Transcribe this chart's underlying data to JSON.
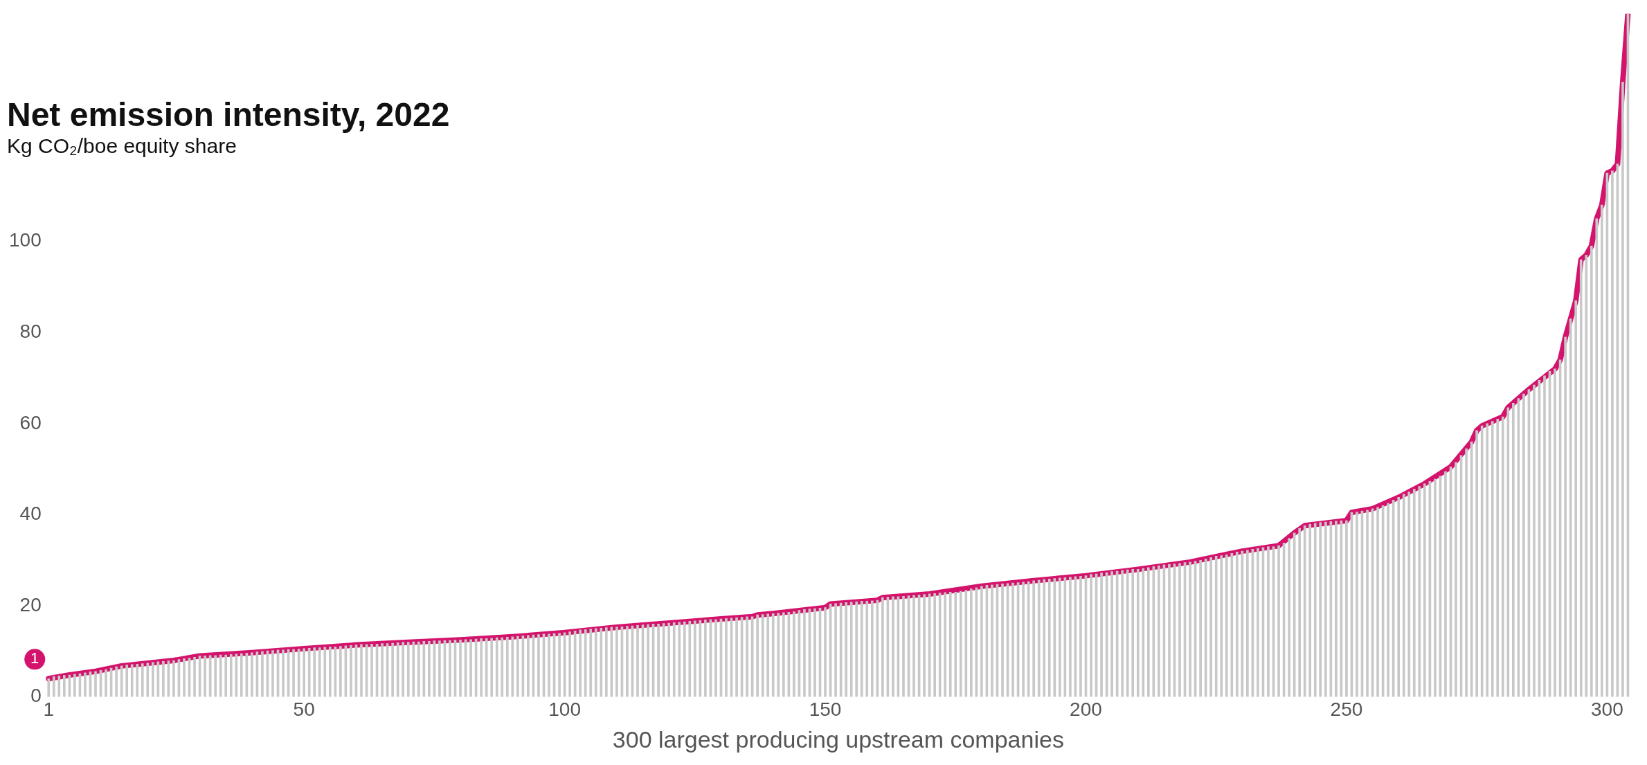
{
  "chart_data": {
    "type": "bar",
    "title": "Net emission intensity, 2022",
    "subtitle": "Kg CO₂/boe equity share",
    "xlabel": "300 largest producing upstream companies",
    "xlim": [
      0,
      305
    ],
    "xticks": [
      1,
      50,
      100,
      150,
      200,
      250,
      300
    ],
    "ylim": [
      0,
      150
    ],
    "yticks": [
      0,
      20,
      40,
      60,
      80,
      100
    ],
    "annotations": [
      {
        "text": "1",
        "x": 1,
        "y": 4
      }
    ],
    "series": [
      {
        "color": "#c8c8c8",
        "x": [
          1,
          2,
          3,
          4,
          5,
          6,
          7,
          8,
          9,
          10,
          11,
          12,
          13,
          14,
          15,
          16,
          17,
          18,
          19,
          20,
          21,
          22,
          23,
          24,
          25,
          26,
          27,
          28,
          29,
          30,
          31,
          32,
          33,
          34,
          35,
          36,
          37,
          38,
          39,
          40,
          41,
          42,
          43,
          44,
          45,
          46,
          47,
          48,
          49,
          50,
          51,
          52,
          53,
          54,
          55,
          56,
          57,
          58,
          59,
          60,
          61,
          62,
          63,
          64,
          65,
          66,
          67,
          68,
          69,
          70,
          71,
          72,
          73,
          74,
          75,
          76,
          77,
          78,
          79,
          80,
          81,
          82,
          83,
          84,
          85,
          86,
          87,
          88,
          89,
          90,
          91,
          92,
          93,
          94,
          95,
          96,
          97,
          98,
          99,
          100,
          101,
          102,
          103,
          104,
          105,
          106,
          107,
          108,
          109,
          110,
          111,
          112,
          113,
          114,
          115,
          116,
          117,
          118,
          119,
          120,
          121,
          122,
          123,
          124,
          125,
          126,
          127,
          128,
          129,
          130,
          131,
          132,
          133,
          134,
          135,
          136,
          137,
          138,
          139,
          140,
          141,
          142,
          143,
          144,
          145,
          146,
          147,
          148,
          149,
          150,
          151,
          152,
          153,
          154,
          155,
          156,
          157,
          158,
          159,
          160,
          161,
          162,
          163,
          164,
          165,
          166,
          167,
          168,
          169,
          170,
          171,
          172,
          173,
          174,
          175,
          176,
          177,
          178,
          179,
          180,
          181,
          182,
          183,
          184,
          185,
          186,
          187,
          188,
          189,
          190,
          191,
          192,
          193,
          194,
          195,
          196,
          197,
          198,
          199,
          200,
          201,
          202,
          203,
          204,
          205,
          206,
          207,
          208,
          209,
          210,
          211,
          212,
          213,
          214,
          215,
          216,
          217,
          218,
          219,
          220,
          221,
          222,
          223,
          224,
          225,
          226,
          227,
          228,
          229,
          230,
          231,
          232,
          233,
          234,
          235,
          236,
          237,
          238,
          239,
          240,
          241,
          242,
          243,
          244,
          245,
          246,
          247,
          248,
          249,
          250,
          251,
          252,
          253,
          254,
          255,
          256,
          257,
          258,
          259,
          260,
          261,
          262,
          263,
          264,
          265,
          266,
          267,
          268,
          269,
          270,
          271,
          272,
          273,
          274,
          275,
          276,
          277,
          278,
          279,
          280,
          281,
          282,
          283,
          284,
          285,
          286,
          287,
          288,
          289,
          290,
          291,
          292,
          293,
          294,
          295,
          296,
          297,
          298,
          299,
          300,
          301,
          302,
          303,
          304
        ],
        "values": [
          4,
          4.5,
          4.6,
          4.7,
          4.8,
          5,
          5.1,
          5.3,
          5.5,
          5.6,
          5.8,
          6,
          6.3,
          6.6,
          6.8,
          7,
          7.1,
          7.2,
          7.3,
          7.4,
          7.6,
          7.7,
          7.8,
          7.9,
          8,
          8.2,
          8.4,
          8.5,
          8.7,
          9,
          9,
          9.1,
          9.1,
          9.2,
          9.2,
          9.3,
          9.4,
          9.5,
          9.6,
          9.7,
          9.9,
          10,
          10.1,
          10.2,
          10.3,
          10.3,
          10.4,
          10.4,
          10.5,
          10.6,
          10.7,
          10.8,
          10.8,
          10.9,
          11,
          11,
          11.1,
          11.2,
          11.3,
          11.4,
          11.5,
          11.5,
          11.6,
          11.6,
          11.7,
          11.7,
          11.8,
          11.9,
          12,
          12,
          12.1,
          12.1,
          12.2,
          12.2,
          12.3,
          12.3,
          12.4,
          12.4,
          12.5,
          12.5,
          12.6,
          12.6,
          12.7,
          12.8,
          12.8,
          12.9,
          13,
          13,
          13.1,
          13.2,
          13.3,
          13.4,
          13.5,
          13.6,
          13.7,
          13.8,
          13.8,
          13.9,
          14,
          14.1,
          14.3,
          14.5,
          14.7,
          14.8,
          14.9,
          15,
          15.1,
          15.2,
          15.3,
          15.3,
          15.4,
          15.5,
          15.6,
          15.7,
          15.8,
          15.9,
          16,
          16,
          16.1,
          16.2,
          16.3,
          16.4,
          16.5,
          16.6,
          16.7,
          16.8,
          16.9,
          17,
          17,
          17.1,
          17.2,
          17.3,
          17.4,
          17.5,
          17.6,
          17.6,
          18,
          18.1,
          18.2,
          18.3,
          18.4,
          18.5,
          18.6,
          18.7,
          19,
          19.2,
          19.3,
          19.4,
          19.5,
          19.6,
          20.4,
          20.5,
          20.6,
          20.7,
          20.8,
          20.9,
          21,
          21,
          21.1,
          21.2,
          21.8,
          21.9,
          22,
          22,
          22.1,
          22.2,
          22.3,
          22.4,
          22.5,
          22.6,
          22.7,
          22.8,
          22.9,
          23,
          23,
          23.2,
          23.4,
          23.7,
          24,
          24.3,
          24.5,
          24.6,
          24.7,
          24.8,
          24.9,
          25,
          25.1,
          25.2,
          25.3,
          25.5,
          25.6,
          25.8,
          25.9,
          26,
          26.1,
          26.2,
          26.3,
          26.4,
          26.5,
          26.6,
          26.9,
          27,
          27.2,
          27.3,
          27.5,
          27.6,
          27.8,
          27.9,
          28,
          28,
          28.2,
          28.4,
          28.6,
          28.8,
          29,
          29.1,
          29.2,
          29.3,
          29.5,
          29.6,
          29.8,
          30,
          30.3,
          30.6,
          30.9,
          31,
          31.2,
          31.5,
          31.8,
          32,
          32.2,
          32.4,
          32.6,
          32.8,
          33,
          33,
          33.2,
          33.8,
          34.8,
          36,
          37,
          37.6,
          37.9,
          38.1,
          38.3,
          38.4,
          38.5,
          38.6,
          38.7,
          38.7,
          40.5,
          40.6,
          40.8,
          41,
          41.3,
          41.6,
          42,
          42.5,
          43.2,
          43.8,
          44.5,
          45,
          45.6,
          46.2,
          46.8,
          47.3,
          47.8,
          48.5,
          49.5,
          50.5,
          51.5,
          53,
          54.5,
          56,
          58.5,
          59.5,
          60,
          60.5,
          61,
          61.5,
          63.5,
          64.5,
          65.5,
          66.5,
          67.5,
          68.5,
          69.5,
          70.5,
          71.5,
          72,
          74,
          79,
          83,
          87,
          96,
          97,
          99,
          105,
          108,
          115,
          115.5,
          117,
          135,
          150
        ]
      },
      {
        "type": "line",
        "color": "#d4146c",
        "x": [
          1,
          5,
          10,
          15,
          20,
          25,
          30,
          40,
          50,
          60,
          70,
          80,
          90,
          100,
          110,
          120,
          130,
          136,
          137,
          140,
          150,
          151,
          160,
          161,
          170,
          180,
          190,
          200,
          210,
          220,
          230,
          237,
          240,
          242,
          250,
          251,
          255,
          260,
          265,
          270,
          274,
          275,
          276,
          280,
          281,
          285,
          290,
          291,
          292,
          293,
          294,
          295,
          296,
          297,
          298,
          299,
          300,
          301,
          302,
          303,
          304
        ],
        "values": [
          4,
          4.8,
          5.6,
          6.8,
          7.4,
          8,
          9,
          9.7,
          10.6,
          11.4,
          12,
          12.5,
          13.2,
          14.1,
          15.3,
          16.2,
          17.1,
          17.6,
          18,
          18.3,
          19.6,
          20.4,
          21.2,
          21.8,
          22.6,
          24.3,
          25.5,
          26.6,
          28,
          29.6,
          32,
          33.2,
          36,
          37.6,
          38.7,
          40.5,
          41.3,
          43.8,
          46.8,
          50.5,
          56,
          58.5,
          59.5,
          61.5,
          63.5,
          67.5,
          72,
          74,
          79,
          83,
          87,
          96,
          97,
          99,
          105,
          108,
          115,
          115.5,
          117,
          135,
          150
        ]
      }
    ]
  }
}
